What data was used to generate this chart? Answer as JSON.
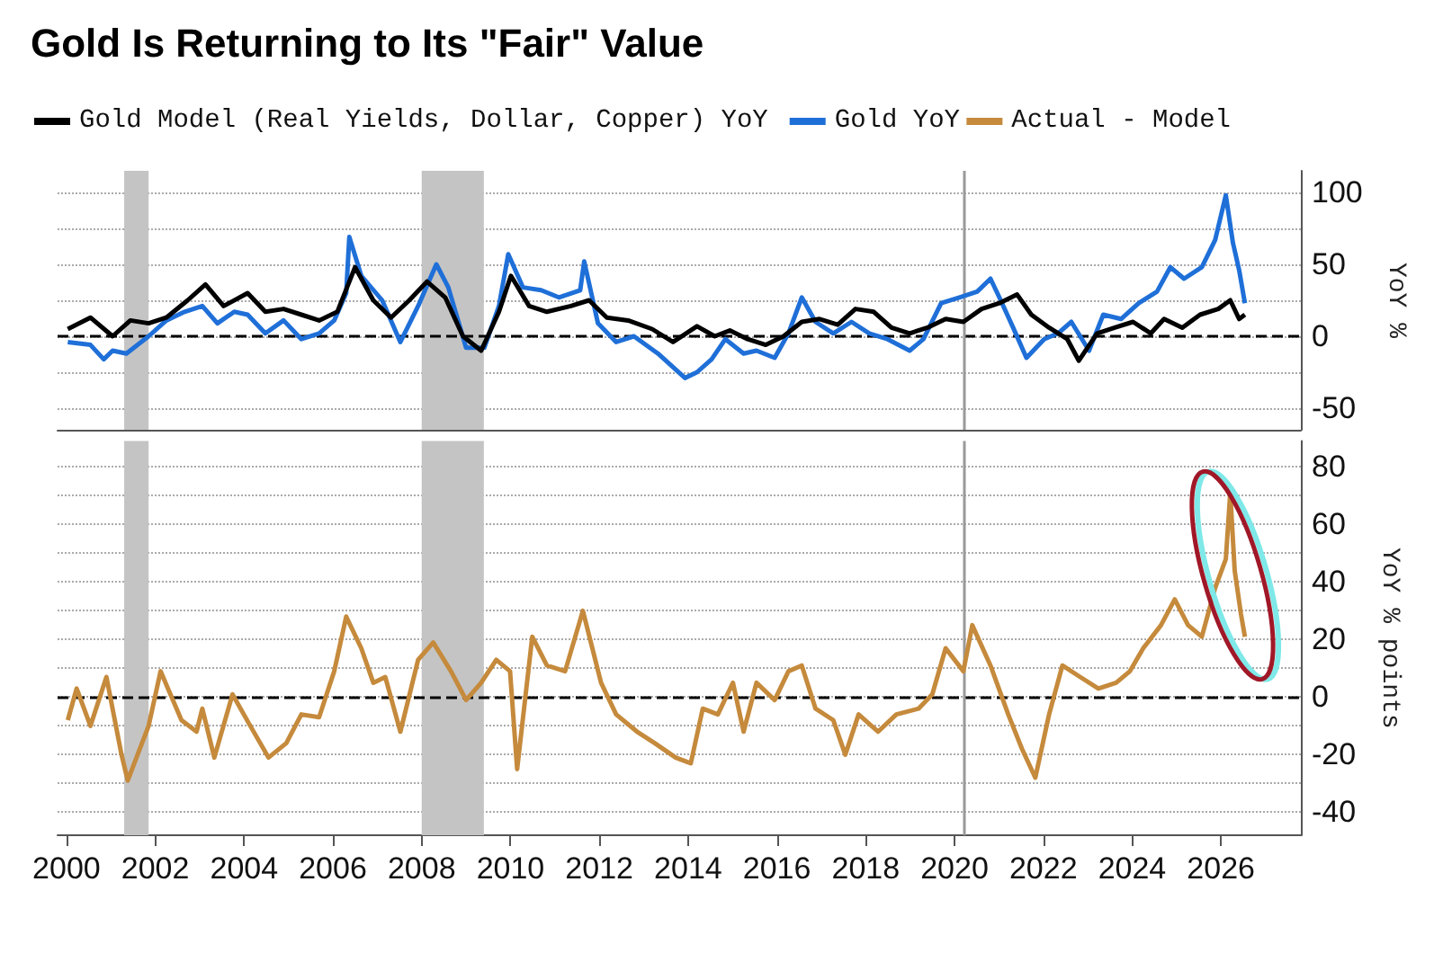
{
  "chart_data": [
    {
      "type": "line",
      "title": "Gold Is Returning to Its \"Fair\" Value",
      "ylabel": "YoY %",
      "xlim": [
        1999.8,
        2027.8
      ],
      "ylim": [
        -65,
        115
      ],
      "yticks": [
        -50,
        {
          "value": -25,
          "label": null
        },
        0,
        {
          "value": 25,
          "label": null
        },
        50,
        {
          "value": 75,
          "label": null
        },
        100
      ],
      "tick_labels": "y",
      "grid": "y",
      "legend": "top left",
      "ref_lines": [
        {
          "axis": "y",
          "value": 0,
          "line_style": "dashed",
          "color": "#000000"
        },
        {
          "axis": "x",
          "value": 2020.2,
          "color": "#999999"
        }
      ],
      "bands": [
        {
          "axis": "x",
          "from": 2001.3,
          "to": 2001.85,
          "color": "#c4c4c4"
        },
        {
          "axis": "x",
          "from": 2008.0,
          "to": 2009.4,
          "color": "#c4c4c4"
        }
      ],
      "series": [
        {
          "name": "Gold Model (Real Yields, Dollar, Copper) YoY",
          "color": "#000000",
          "x": [
            2000.03,
            2000.54,
            2001.04,
            2001.44,
            2001.85,
            2002.25,
            2002.73,
            2003.13,
            2003.54,
            2004.08,
            2004.48,
            2004.89,
            2005.29,
            2005.69,
            2006.1,
            2006.5,
            2006.91,
            2007.31,
            2007.72,
            2008.12,
            2008.53,
            2008.93,
            2009.34,
            2009.74,
            2010.01,
            2010.42,
            2010.82,
            2011.36,
            2011.77,
            2012.17,
            2012.65,
            2013.19,
            2013.66,
            2014.2,
            2014.6,
            2014.94,
            2015.34,
            2015.75,
            2016.15,
            2016.56,
            2016.96,
            2017.37,
            2017.77,
            2018.18,
            2018.58,
            2018.99,
            2019.39,
            2019.8,
            2020.2,
            2020.61,
            2021.01,
            2021.41,
            2021.73,
            2022.13,
            2022.54,
            2022.8,
            2023.21,
            2023.61,
            2024.02,
            2024.42,
            2024.72,
            2025.13,
            2025.53,
            2025.94,
            2026.21,
            2026.41,
            2026.54
          ],
          "values": [
            5,
            13,
            0,
            11,
            9,
            13,
            25,
            36,
            21,
            30,
            17,
            19,
            15,
            11,
            17,
            48,
            25,
            13,
            25,
            38,
            27,
            0,
            -10,
            17,
            42,
            21,
            17,
            21,
            25,
            13,
            11,
            5,
            -4,
            7,
            0,
            4,
            -2,
            -6,
            0,
            10,
            12,
            8,
            19,
            17,
            6,
            2,
            6,
            12,
            10,
            19,
            23,
            29,
            15,
            6,
            -2,
            -17,
            2,
            6,
            10,
            2,
            12,
            6,
            15,
            19,
            25,
            12,
            15
          ]
        },
        {
          "name": "Gold YoY",
          "color": "#1f6fd8",
          "x": [
            2000.03,
            2000.54,
            2000.84,
            2001.04,
            2001.35,
            2001.85,
            2002.25,
            2002.66,
            2003.06,
            2003.4,
            2003.78,
            2004.08,
            2004.48,
            2004.89,
            2005.29,
            2005.69,
            2006.03,
            2006.3,
            2006.37,
            2006.64,
            2007.11,
            2007.52,
            2007.92,
            2008.33,
            2008.6,
            2009.0,
            2009.41,
            2009.74,
            2009.95,
            2010.28,
            2010.69,
            2011.09,
            2011.57,
            2011.66,
            2011.97,
            2012.38,
            2012.78,
            2013.32,
            2013.93,
            2014.2,
            2014.53,
            2014.84,
            2015.25,
            2015.54,
            2015.95,
            2016.26,
            2016.56,
            2016.87,
            2017.27,
            2017.68,
            2018.08,
            2018.49,
            2018.99,
            2019.3,
            2019.7,
            2020.11,
            2020.51,
            2020.81,
            2021.01,
            2021.32,
            2021.62,
            2022.02,
            2022.33,
            2022.63,
            2023.03,
            2023.35,
            2023.75,
            2024.15,
            2024.56,
            2024.86,
            2025.17,
            2025.57,
            2025.87,
            2026.11,
            2026.27,
            2026.41,
            2026.54
          ],
          "values": [
            -4,
            -6,
            -16,
            -10,
            -12,
            0,
            11,
            17,
            21,
            9,
            17,
            15,
            2,
            11,
            -2,
            2,
            11,
            30,
            69,
            42,
            25,
            -4,
            21,
            50,
            34,
            -8,
            -8,
            21,
            57,
            34,
            32,
            27,
            32,
            52,
            9,
            -4,
            0,
            -12,
            -29,
            -25,
            -16,
            -2,
            -12,
            -10,
            -15,
            2,
            27,
            10,
            2,
            10,
            2,
            -2,
            -10,
            -2,
            23,
            27,
            31,
            40,
            27,
            6,
            -15,
            -2,
            2,
            10,
            -10,
            15,
            12,
            23,
            31,
            48,
            40,
            48,
            67,
            98,
            65,
            46,
            23
          ]
        }
      ]
    },
    {
      "type": "line",
      "ylabel": "YoY % points",
      "xlim": [
        1999.8,
        2027.8
      ],
      "ylim": [
        -48,
        89
      ],
      "xticks": [
        2000,
        2002,
        2004,
        2006,
        2008,
        2010,
        2012,
        2014,
        2016,
        2018,
        2020,
        2022,
        2024,
        2026
      ],
      "yticks": [
        -40,
        {
          "value": -30,
          "label": null
        },
        -20,
        {
          "value": -10,
          "label": null
        },
        0,
        {
          "value": 10,
          "label": null
        },
        20,
        {
          "value": 30,
          "label": null
        },
        40,
        {
          "value": 50,
          "label": null
        },
        60,
        {
          "value": 70,
          "label": null
        },
        80
      ],
      "grid": "y",
      "legend": "top right",
      "ref_lines": [
        {
          "axis": "y",
          "value": 0,
          "line_style": "dashed",
          "color": "#000000"
        },
        {
          "axis": "x",
          "value": 2020.2,
          "color": "#999999"
        }
      ],
      "bands": [
        {
          "axis": "x",
          "from": 2001.3,
          "to": 2001.85,
          "color": "#c4c4c4"
        },
        {
          "axis": "x",
          "from": 2008.0,
          "to": 2009.4,
          "color": "#c4c4c4"
        }
      ],
      "series": [
        {
          "name": "Actual - Model",
          "color": "#c58a3c",
          "x": [
            2000.03,
            2000.23,
            2000.54,
            2000.9,
            2001.24,
            2001.38,
            2001.85,
            2002.12,
            2002.59,
            2002.93,
            2003.06,
            2003.33,
            2003.74,
            2004.14,
            2004.55,
            2004.95,
            2005.29,
            2005.69,
            2006.03,
            2006.3,
            2006.64,
            2006.91,
            2007.18,
            2007.52,
            2007.92,
            2008.26,
            2008.66,
            2009.0,
            2009.34,
            2009.68,
            2009.99,
            2010.15,
            2010.49,
            2010.82,
            2011.23,
            2011.63,
            2012.04,
            2012.38,
            2012.85,
            2013.25,
            2013.72,
            2014.06,
            2014.33,
            2014.67,
            2015.01,
            2015.25,
            2015.54,
            2015.95,
            2016.26,
            2016.56,
            2016.87,
            2017.27,
            2017.54,
            2017.84,
            2018.28,
            2018.69,
            2019.19,
            2019.5,
            2019.8,
            2020.2,
            2020.4,
            2020.81,
            2021.21,
            2021.52,
            2021.82,
            2022.13,
            2022.43,
            2022.83,
            2023.24,
            2023.64,
            2023.95,
            2024.25,
            2024.65,
            2024.96,
            2025.26,
            2025.57,
            2025.87,
            2026.11,
            2026.21,
            2026.31,
            2026.45,
            2026.54
          ],
          "values": [
            -8,
            3,
            -10,
            7,
            -20,
            -29,
            -10,
            9,
            -8,
            -12,
            -4,
            -21,
            1,
            -10,
            -21,
            -16,
            -6,
            -7,
            9,
            28,
            17,
            5,
            7,
            -12,
            13,
            19,
            9,
            -1,
            5,
            13,
            9,
            -25,
            21,
            11,
            9,
            30,
            5,
            -6,
            -12,
            -16,
            -21,
            -23,
            -4,
            -6,
            5,
            -12,
            5,
            -1,
            9,
            11,
            -4,
            -8,
            -20,
            -6,
            -12,
            -6,
            -4,
            1,
            17,
            9,
            25,
            11,
            -6,
            -18,
            -28,
            -6,
            11,
            7,
            3,
            5,
            9,
            17,
            25,
            34,
            25,
            21,
            38,
            48,
            71,
            44,
            29,
            21
          ]
        }
      ]
    }
  ]
}
